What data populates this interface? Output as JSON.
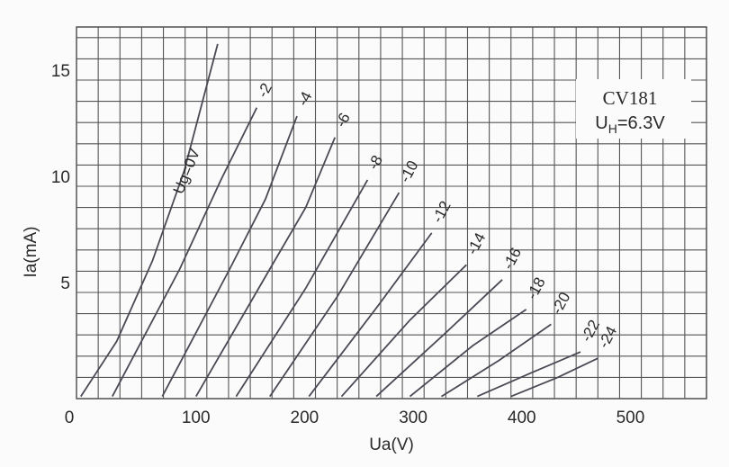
{
  "chart_data": {
    "type": "line",
    "x_label": "Ua(V)",
    "y_label": "Ia(mA)",
    "box": {
      "title": "CV181",
      "symbol": "U",
      "subscript": "H",
      "value": "=6.3V"
    },
    "xlim": [
      0,
      580
    ],
    "xticks": [
      0,
      100,
      200,
      300,
      400,
      500
    ],
    "ylim": [
      0,
      17.5
    ],
    "yticks": [
      5,
      10,
      15
    ],
    "minor_xgrid": [
      20,
      40,
      60,
      80,
      120,
      140,
      160,
      180,
      220,
      240,
      260,
      280,
      320,
      340,
      360,
      380,
      420,
      440,
      460,
      480,
      520,
      540,
      560
    ],
    "minor_ygrid": [
      1,
      2,
      3,
      4,
      6,
      7,
      8,
      9,
      11,
      12,
      13,
      14,
      16,
      17
    ],
    "grid": true,
    "color": "#4a4a55",
    "series": [
      {
        "name": "Ug=0V",
        "x": [
          4,
          37,
          70,
          99,
          130
        ],
        "values": [
          0.1,
          2.7,
          6.5,
          10.7,
          16.7
        ]
      },
      {
        "name": "-2",
        "x": [
          33,
          95,
          133,
          166
        ],
        "values": [
          0.1,
          6.1,
          10.3,
          13.7
        ]
      },
      {
        "name": "-4",
        "x": [
          79,
          141,
          174,
          203
        ],
        "values": [
          0.1,
          6.1,
          9.4,
          13.3
        ]
      },
      {
        "name": "-6",
        "x": [
          110,
          178,
          211,
          238
        ],
        "values": [
          0.1,
          6.1,
          9.0,
          12.3
        ]
      },
      {
        "name": "-8",
        "x": [
          147,
          211,
          268
        ],
        "values": [
          0.1,
          5.2,
          10.3
        ]
      },
      {
        "name": "-10",
        "x": [
          178,
          240,
          297
        ],
        "values": [
          0.1,
          4.8,
          9.7
        ]
      },
      {
        "name": "-12",
        "x": [
          214,
          278,
          327
        ],
        "values": [
          0.1,
          4.4,
          7.8
        ]
      },
      {
        "name": "-14",
        "x": [
          244,
          307,
          359
        ],
        "values": [
          0.1,
          3.7,
          6.3
        ]
      },
      {
        "name": "-16",
        "x": [
          276,
          340,
          392
        ],
        "values": [
          0.1,
          3.1,
          5.6
        ]
      },
      {
        "name": "-18",
        "x": [
          307,
          365,
          414
        ],
        "values": [
          0.1,
          2.5,
          4.2
        ]
      },
      {
        "name": "-20",
        "x": [
          336,
          389,
          437
        ],
        "values": [
          0.1,
          1.8,
          3.5
        ]
      },
      {
        "name": "-22",
        "x": [
          369,
          418,
          464
        ],
        "values": [
          0.1,
          1.2,
          2.2
        ]
      },
      {
        "name": "-24",
        "x": [
          400,
          443,
          480
        ],
        "values": [
          0.1,
          1.0,
          1.9
        ]
      }
    ]
  }
}
